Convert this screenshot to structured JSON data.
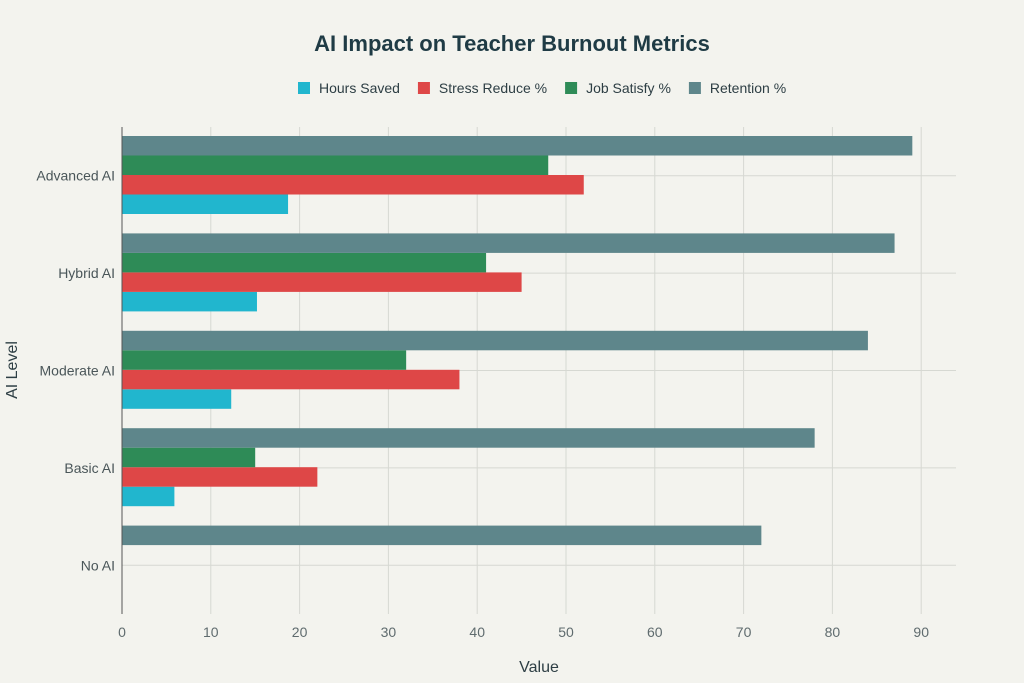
{
  "chart_data": {
    "type": "bar",
    "orientation": "horizontal",
    "title": "AI Impact on Teacher Burnout Metrics",
    "xlabel": "Value",
    "ylabel": "AI Level",
    "xlim": [
      0,
      94
    ],
    "xticks": [
      0,
      10,
      20,
      30,
      40,
      50,
      60,
      70,
      80,
      90
    ],
    "grid": true,
    "legend_position": "top-center",
    "categories": [
      "Advanced AI",
      "Hybrid AI",
      "Moderate AI",
      "Basic AI",
      "No AI"
    ],
    "series": [
      {
        "name": "Hours Saved",
        "color": "#21b6ce",
        "values": [
          18.7,
          15.2,
          12.3,
          5.9,
          0
        ]
      },
      {
        "name": "Stress Reduce %",
        "color": "#de4747",
        "values": [
          52,
          45,
          38,
          22,
          0
        ]
      },
      {
        "name": "Job Satisfy %",
        "color": "#2e8b57",
        "values": [
          48,
          41,
          32,
          15,
          0
        ]
      },
      {
        "name": "Retention %",
        "color": "#5e868b",
        "values": [
          89,
          87,
          84,
          78,
          72
        ]
      }
    ]
  }
}
